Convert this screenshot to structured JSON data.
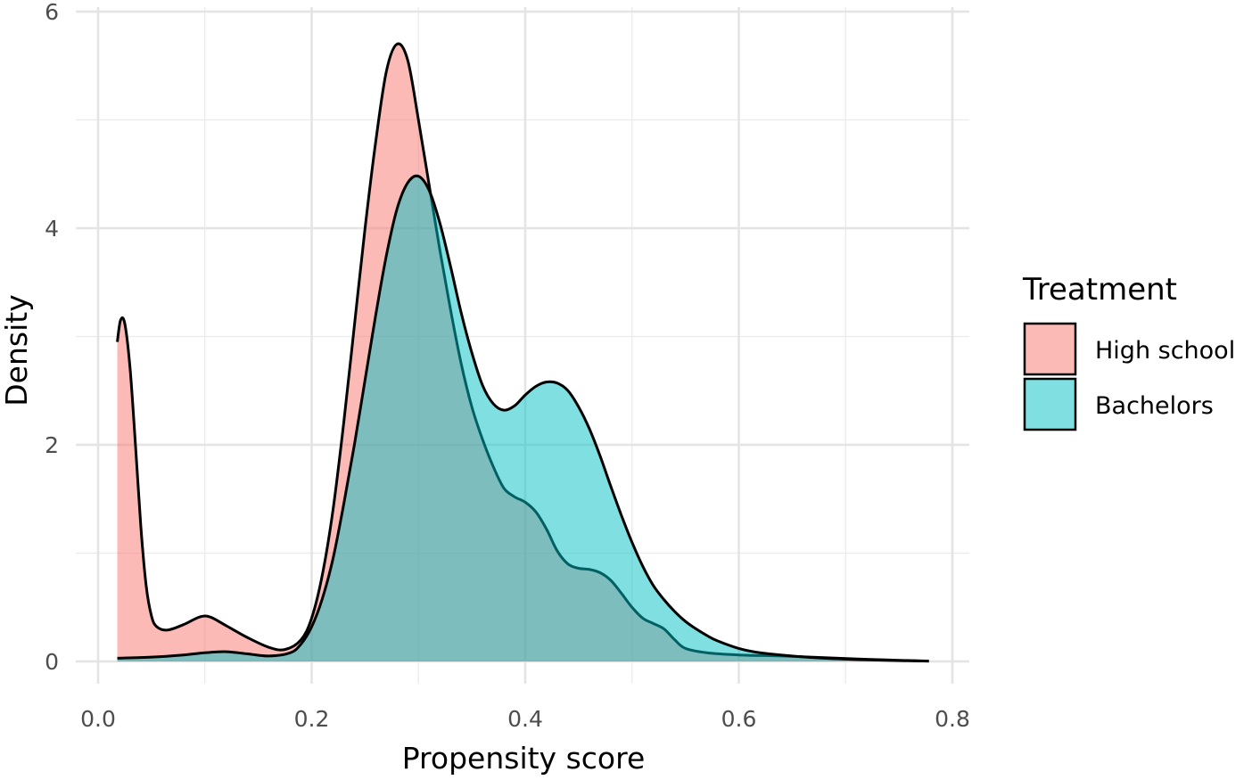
{
  "chart_data": {
    "type": "area",
    "xlabel": "Propensity score",
    "ylabel": "Density",
    "xlim": [
      0.0,
      0.8
    ],
    "ylim": [
      0,
      6
    ],
    "x_ticks": [
      "0.0",
      "0.2",
      "0.4",
      "0.6",
      "0.8"
    ],
    "y_ticks": [
      "0",
      "2",
      "4",
      "6"
    ],
    "grid": true,
    "legend": {
      "title": "Treatment",
      "placement": "right"
    },
    "series": [
      {
        "name": "High school",
        "color": "#F8766D",
        "points": [
          [
            0.018,
            2.95
          ],
          [
            0.021,
            3.15
          ],
          [
            0.025,
            3.12
          ],
          [
            0.03,
            2.7
          ],
          [
            0.035,
            2.0
          ],
          [
            0.04,
            1.25
          ],
          [
            0.045,
            0.7
          ],
          [
            0.05,
            0.42
          ],
          [
            0.055,
            0.32
          ],
          [
            0.065,
            0.29
          ],
          [
            0.08,
            0.34
          ],
          [
            0.095,
            0.41
          ],
          [
            0.105,
            0.41
          ],
          [
            0.12,
            0.33
          ],
          [
            0.14,
            0.22
          ],
          [
            0.16,
            0.13
          ],
          [
            0.175,
            0.11
          ],
          [
            0.19,
            0.2
          ],
          [
            0.2,
            0.4
          ],
          [
            0.21,
            0.8
          ],
          [
            0.22,
            1.4
          ],
          [
            0.23,
            2.2
          ],
          [
            0.24,
            3.1
          ],
          [
            0.25,
            4.0
          ],
          [
            0.26,
            4.8
          ],
          [
            0.27,
            5.45
          ],
          [
            0.28,
            5.7
          ],
          [
            0.29,
            5.55
          ],
          [
            0.3,
            5.0
          ],
          [
            0.31,
            4.4
          ],
          [
            0.32,
            3.8
          ],
          [
            0.33,
            3.25
          ],
          [
            0.34,
            2.75
          ],
          [
            0.35,
            2.35
          ],
          [
            0.36,
            2.05
          ],
          [
            0.37,
            1.8
          ],
          [
            0.38,
            1.6
          ],
          [
            0.39,
            1.52
          ],
          [
            0.4,
            1.47
          ],
          [
            0.41,
            1.38
          ],
          [
            0.42,
            1.22
          ],
          [
            0.43,
            1.02
          ],
          [
            0.44,
            0.9
          ],
          [
            0.45,
            0.86
          ],
          [
            0.46,
            0.85
          ],
          [
            0.47,
            0.82
          ],
          [
            0.48,
            0.75
          ],
          [
            0.49,
            0.63
          ],
          [
            0.5,
            0.5
          ],
          [
            0.51,
            0.4
          ],
          [
            0.52,
            0.35
          ],
          [
            0.53,
            0.3
          ],
          [
            0.54,
            0.2
          ],
          [
            0.55,
            0.12
          ],
          [
            0.57,
            0.08
          ],
          [
            0.6,
            0.06
          ],
          [
            0.64,
            0.05
          ],
          [
            0.68,
            0.035
          ],
          [
            0.72,
            0.02
          ],
          [
            0.76,
            0.008
          ],
          [
            0.778,
            0.003
          ]
        ]
      },
      {
        "name": "Bachelors",
        "color": "#00BFC4",
        "points": [
          [
            0.018,
            0.03
          ],
          [
            0.05,
            0.04
          ],
          [
            0.08,
            0.06
          ],
          [
            0.1,
            0.08
          ],
          [
            0.12,
            0.09
          ],
          [
            0.14,
            0.07
          ],
          [
            0.16,
            0.05
          ],
          [
            0.18,
            0.08
          ],
          [
            0.19,
            0.16
          ],
          [
            0.2,
            0.32
          ],
          [
            0.21,
            0.58
          ],
          [
            0.22,
            0.95
          ],
          [
            0.23,
            1.45
          ],
          [
            0.24,
            2.0
          ],
          [
            0.25,
            2.6
          ],
          [
            0.26,
            3.2
          ],
          [
            0.27,
            3.75
          ],
          [
            0.28,
            4.18
          ],
          [
            0.29,
            4.42
          ],
          [
            0.3,
            4.48
          ],
          [
            0.31,
            4.35
          ],
          [
            0.32,
            4.05
          ],
          [
            0.33,
            3.65
          ],
          [
            0.34,
            3.22
          ],
          [
            0.35,
            2.85
          ],
          [
            0.36,
            2.55
          ],
          [
            0.37,
            2.38
          ],
          [
            0.38,
            2.32
          ],
          [
            0.39,
            2.36
          ],
          [
            0.4,
            2.46
          ],
          [
            0.41,
            2.54
          ],
          [
            0.42,
            2.58
          ],
          [
            0.43,
            2.57
          ],
          [
            0.44,
            2.5
          ],
          [
            0.45,
            2.35
          ],
          [
            0.46,
            2.15
          ],
          [
            0.47,
            1.9
          ],
          [
            0.48,
            1.62
          ],
          [
            0.49,
            1.35
          ],
          [
            0.5,
            1.1
          ],
          [
            0.51,
            0.88
          ],
          [
            0.52,
            0.7
          ],
          [
            0.53,
            0.57
          ],
          [
            0.54,
            0.46
          ],
          [
            0.55,
            0.37
          ],
          [
            0.56,
            0.3
          ],
          [
            0.57,
            0.24
          ],
          [
            0.58,
            0.19
          ],
          [
            0.6,
            0.12
          ],
          [
            0.62,
            0.08
          ],
          [
            0.65,
            0.05
          ],
          [
            0.68,
            0.03
          ],
          [
            0.72,
            0.015
          ],
          [
            0.76,
            0.006
          ],
          [
            0.778,
            0.003
          ]
        ]
      }
    ]
  }
}
